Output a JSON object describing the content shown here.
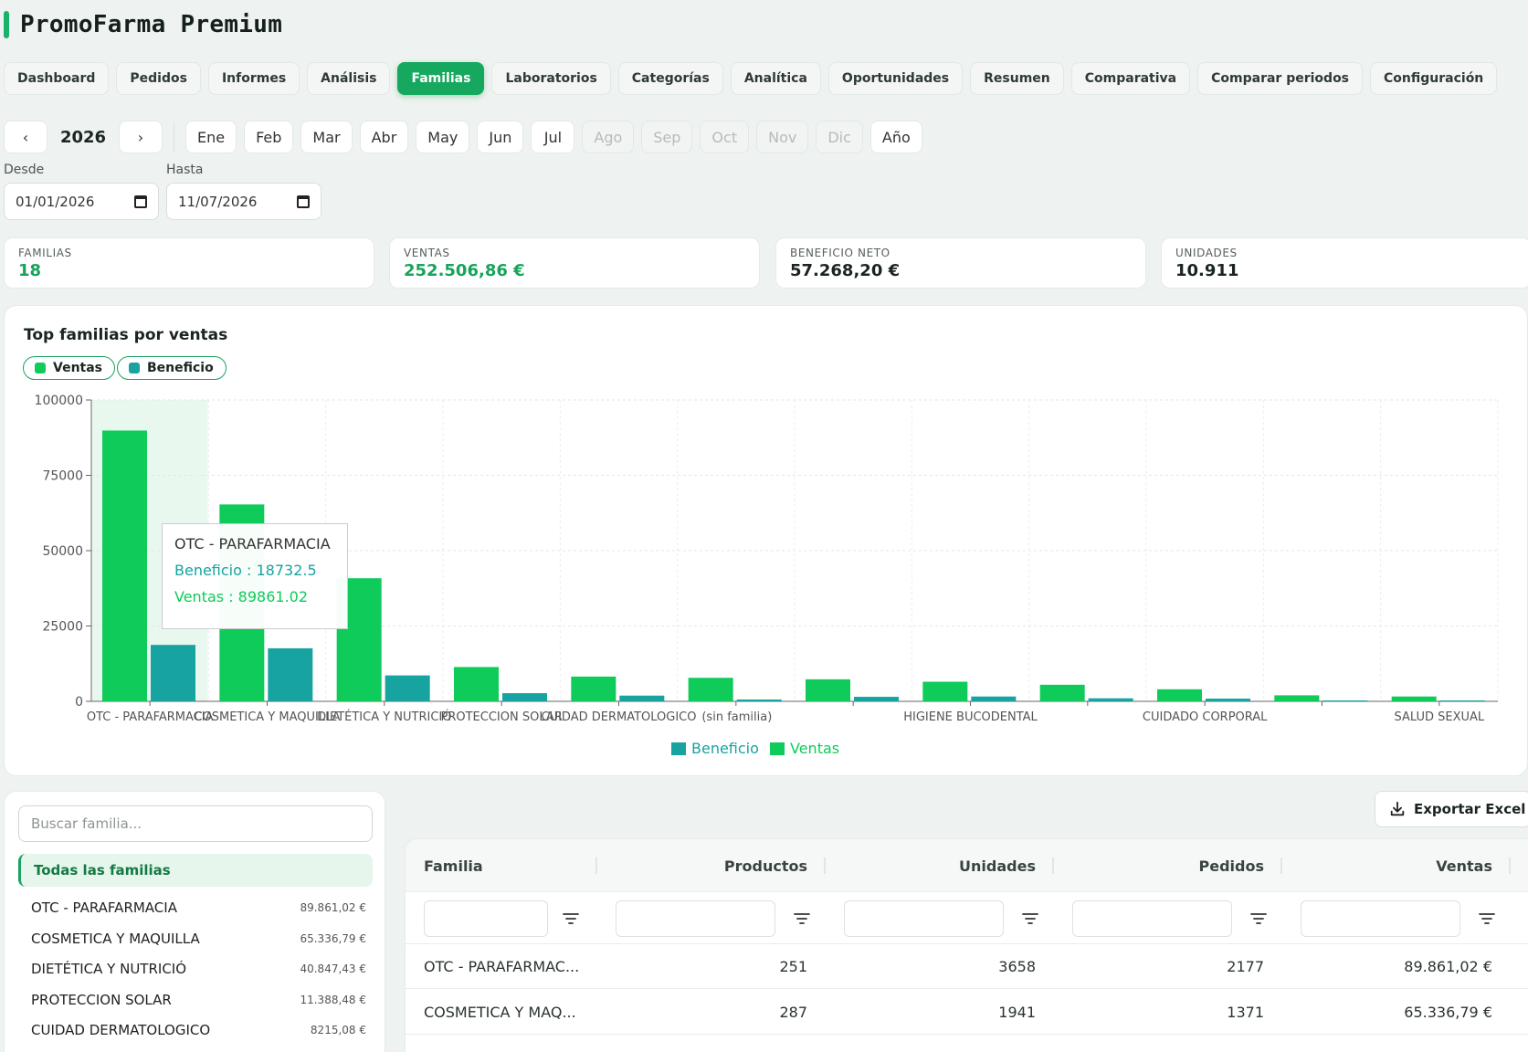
{
  "app": {
    "title": "PromoFarma Premium"
  },
  "tabs": [
    {
      "label": "Dashboard"
    },
    {
      "label": "Pedidos"
    },
    {
      "label": "Informes"
    },
    {
      "label": "Análisis"
    },
    {
      "label": "Familias",
      "active": true
    },
    {
      "label": "Laboratorios"
    },
    {
      "label": "Categorías"
    },
    {
      "label": "Analítica"
    },
    {
      "label": "Oportunidades"
    },
    {
      "label": "Resumen"
    },
    {
      "label": "Comparativa"
    },
    {
      "label": "Comparar periodos"
    },
    {
      "label": "Configuración"
    }
  ],
  "period": {
    "prev": "‹",
    "next": "›",
    "year": "2026",
    "months": [
      {
        "label": "Ene",
        "enabled": true
      },
      {
        "label": "Feb",
        "enabled": true
      },
      {
        "label": "Mar",
        "enabled": true
      },
      {
        "label": "Abr",
        "enabled": true
      },
      {
        "label": "May",
        "enabled": true
      },
      {
        "label": "Jun",
        "enabled": true
      },
      {
        "label": "Jul",
        "enabled": true
      },
      {
        "label": "Ago",
        "enabled": false
      },
      {
        "label": "Sep",
        "enabled": false
      },
      {
        "label": "Oct",
        "enabled": false
      },
      {
        "label": "Nov",
        "enabled": false
      },
      {
        "label": "Dic",
        "enabled": false
      }
    ],
    "year_button": "Año",
    "from_label": "Desde",
    "from_value": "01/01/2026",
    "to_label": "Hasta",
    "to_value": "11/07/2026"
  },
  "kpis": [
    {
      "label": "FAMILIAS",
      "value": "18",
      "highlight": true
    },
    {
      "label": "VENTAS",
      "value": "252.506,86 €",
      "highlight": true
    },
    {
      "label": "BENEFICIO NETO",
      "value": "57.268,20 €",
      "highlight": false
    },
    {
      "label": "UNIDADES",
      "value": "10.911",
      "highlight": false
    }
  ],
  "chart_toggles": {
    "ventas": "Ventas",
    "beneficio": "Beneficio"
  },
  "chart_data": {
    "type": "bar",
    "title": "Top familias por ventas",
    "categories": [
      "OTC - PARAFARMACIA",
      "COSMETICA Y MAQUILLA",
      "DIETÉTICA Y NUTRICIÓ",
      "PROTECCION SOLAR",
      "CUIDAD DERMATOLOGICO",
      "(sin familia)",
      "",
      "HIGIENE BUCODENTAL",
      "",
      "CUIDADO CORPORAL",
      "",
      "SALUD SEXUAL"
    ],
    "series": [
      {
        "name": "Ventas",
        "color": "#0ecb5a",
        "values": [
          89861.02,
          65336.79,
          40847.43,
          11388.48,
          8215.08,
          7800,
          7300,
          6500,
          5500,
          4000,
          2000,
          1600
        ]
      },
      {
        "name": "Beneficio",
        "color": "#17a3a0",
        "values": [
          18732.5,
          17600,
          8600,
          2700,
          1900,
          600,
          1500,
          1600,
          1000,
          900,
          300,
          300
        ]
      }
    ],
    "ylim": [
      0,
      100000
    ],
    "yticks": [
      0,
      25000,
      50000,
      75000,
      100000
    ],
    "grid": true,
    "legend_position": "bottom",
    "legend": [
      "Beneficio",
      "Ventas"
    ],
    "tooltip": {
      "title": "OTC - PARAFARMACIA",
      "beneficio": "Beneficio : 18732.5",
      "ventas": "Ventas : 89861.02"
    }
  },
  "families_panel": {
    "search_placeholder": "Buscar familia...",
    "all_label": "Todas las familias",
    "items": [
      {
        "name": "OTC - PARAFARMACIA",
        "value": "89.861,02 €"
      },
      {
        "name": "COSMETICA Y MAQUILLA",
        "value": "65.336,79 €"
      },
      {
        "name": "DIETÉTICA Y NUTRICIÓ",
        "value": "40.847,43 €"
      },
      {
        "name": "PROTECCION SOLAR",
        "value": "11.388,48 €"
      },
      {
        "name": "CUIDAD DERMATOLOGICO",
        "value": "8215,08 €"
      }
    ]
  },
  "export_label": "Exportar Excel",
  "table": {
    "columns": [
      "Familia",
      "Productos",
      "Unidades",
      "Pedidos",
      "Ventas"
    ],
    "rows": [
      {
        "familia": "OTC - PARAFARMAC...",
        "productos": "251",
        "unidades": "3658",
        "pedidos": "2177",
        "ventas": "89.861,02 €"
      },
      {
        "familia": "COSMETICA Y MAQ...",
        "productos": "287",
        "unidades": "1941",
        "pedidos": "1371",
        "ventas": "65.336,79 €"
      }
    ]
  }
}
